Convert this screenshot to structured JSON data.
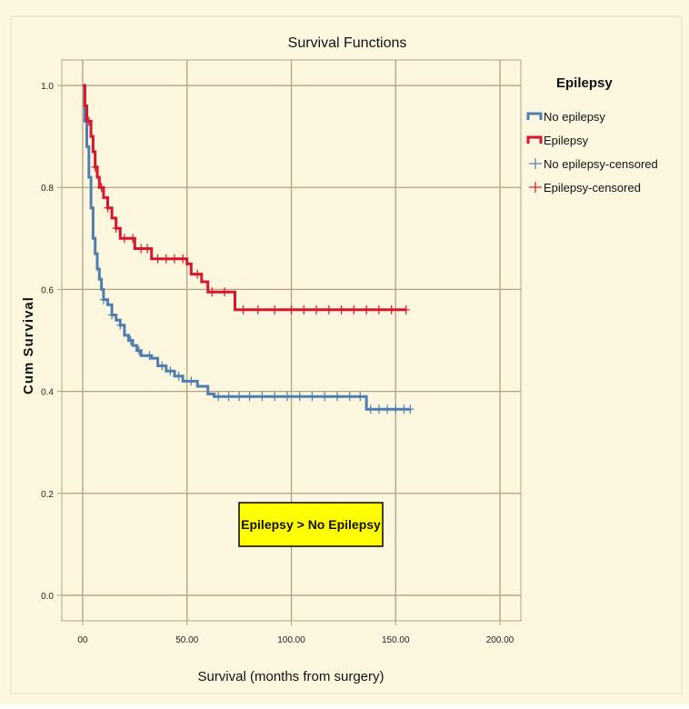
{
  "colors": {
    "background": "#fdf7df",
    "plot_background": "#fdf7df",
    "gridline": "#b2a184",
    "no_epilepsy": "#4f7fb0",
    "epilepsy": "#d8162b",
    "annotation_fill": "#ffff00",
    "annotation_border": "#000000"
  },
  "chart_data": {
    "type": "line",
    "step": true,
    "title": "Survival Functions",
    "xlabel": "Survival (months from surgery)",
    "ylabel": "Cum Survival",
    "xlim": [
      -10,
      210
    ],
    "ylim": [
      -0.05,
      1.05
    ],
    "x_ticks": [
      0,
      50,
      100,
      150,
      200
    ],
    "x_tick_labels": [
      "00",
      "50.00",
      "100.00",
      "150.00",
      "200.00"
    ],
    "y_ticks": [
      0.0,
      0.2,
      0.4,
      0.6,
      0.8,
      1.0
    ],
    "y_tick_labels": [
      "0.0",
      "0.2",
      "0.4",
      "0.6",
      "0.8",
      "1.0"
    ],
    "grid": true,
    "legend": {
      "title": "Epilepsy",
      "placement": "right",
      "entries": [
        "No epilepsy",
        "Epilepsy",
        "No epilepsy-censored",
        "Epilepsy-censored"
      ]
    },
    "annotation": "Epilepsy > No Epilepsy",
    "series": [
      {
        "name": "No epilepsy",
        "color_key": "no_epilepsy",
        "points": [
          [
            0,
            1.0
          ],
          [
            1,
            0.93
          ],
          [
            2,
            0.88
          ],
          [
            3,
            0.82
          ],
          [
            4,
            0.76
          ],
          [
            5,
            0.7
          ],
          [
            6,
            0.67
          ],
          [
            7,
            0.64
          ],
          [
            8,
            0.62
          ],
          [
            9,
            0.6
          ],
          [
            10,
            0.58
          ],
          [
            12,
            0.57
          ],
          [
            14,
            0.55
          ],
          [
            16,
            0.54
          ],
          [
            18,
            0.53
          ],
          [
            20,
            0.51
          ],
          [
            22,
            0.5
          ],
          [
            24,
            0.49
          ],
          [
            26,
            0.48
          ],
          [
            28,
            0.47
          ],
          [
            33,
            0.465
          ],
          [
            36,
            0.45
          ],
          [
            40,
            0.44
          ],
          [
            44,
            0.43
          ],
          [
            48,
            0.42
          ],
          [
            55,
            0.41
          ],
          [
            60,
            0.395
          ],
          [
            63,
            0.39
          ],
          [
            136,
            0.365
          ],
          [
            157,
            0.365
          ]
        ],
        "censored_x": [
          10,
          14,
          18,
          23,
          27,
          32,
          38,
          42,
          46,
          52,
          65,
          70,
          75,
          80,
          86,
          92,
          98,
          104,
          110,
          116,
          122,
          128,
          133,
          138,
          142,
          146,
          150,
          154,
          157
        ]
      },
      {
        "name": "Epilepsy",
        "color_key": "epilepsy",
        "points": [
          [
            0,
            1.0
          ],
          [
            1,
            0.96
          ],
          [
            2,
            0.93
          ],
          [
            4,
            0.9
          ],
          [
            5,
            0.87
          ],
          [
            6,
            0.84
          ],
          [
            7,
            0.82
          ],
          [
            8,
            0.8
          ],
          [
            10,
            0.78
          ],
          [
            12,
            0.76
          ],
          [
            14,
            0.74
          ],
          [
            16,
            0.72
          ],
          [
            18,
            0.7
          ],
          [
            25,
            0.68
          ],
          [
            33,
            0.66
          ],
          [
            50,
            0.65
          ],
          [
            52,
            0.63
          ],
          [
            57,
            0.615
          ],
          [
            60,
            0.595
          ],
          [
            73,
            0.56
          ],
          [
            155,
            0.56
          ]
        ],
        "censored_x": [
          3,
          6,
          9,
          12,
          16,
          20,
          24,
          28,
          31,
          36,
          40,
          44,
          48,
          55,
          62,
          68,
          77,
          84,
          92,
          100,
          106,
          112,
          118,
          124,
          130,
          136,
          142,
          148,
          155
        ]
      }
    ]
  }
}
